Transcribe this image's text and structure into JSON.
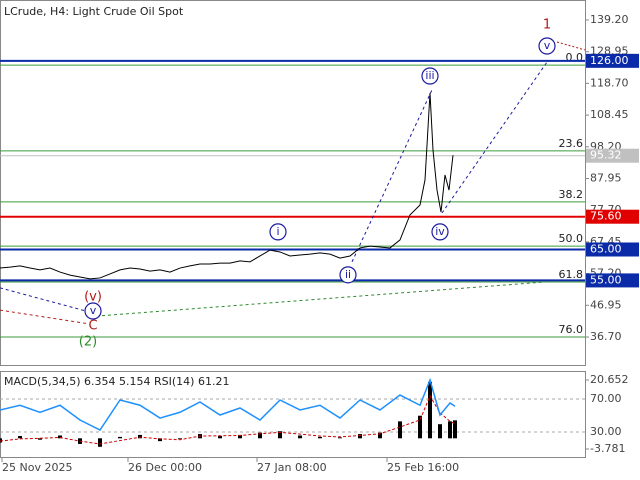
{
  "chart_data": [
    {
      "type": "line",
      "title": "LCrude, H4:  Light Crude Oil Spot",
      "x": [
        0,
        2,
        4,
        6,
        8,
        10,
        12,
        14,
        16,
        18,
        20,
        22,
        24,
        26,
        28,
        30,
        32,
        34,
        36,
        38,
        40,
        42,
        44,
        46,
        48,
        50,
        52,
        54,
        56,
        58,
        60,
        62,
        64,
        66,
        68,
        70,
        72,
        74,
        76,
        78,
        80,
        82,
        84,
        85,
        86,
        86.6,
        87.4,
        88.2,
        89,
        89.8,
        90.6
      ],
      "values": [
        59.0,
        59.3,
        59.7,
        59.0,
        58.4,
        59.0,
        57.7,
        56.7,
        56.1,
        55.5,
        55.8,
        57.1,
        58.4,
        59.0,
        58.7,
        58.0,
        58.4,
        57.7,
        59.0,
        59.7,
        60.3,
        60.3,
        60.6,
        60.6,
        61.3,
        61.0,
        62.9,
        64.8,
        64.2,
        62.9,
        63.2,
        63.5,
        63.9,
        63.5,
        62.2,
        62.9,
        65.5,
        66.1,
        65.8,
        65.5,
        68.1,
        76.2,
        79.4,
        87.5,
        115.6,
        97.2,
        84.2,
        77.1,
        89.1,
        84.2,
        95.5
      ],
      "color": "#000000",
      "xlim": [
        0,
        117
      ],
      "ylim": [
        27.65,
        145.67
      ],
      "xticks": [
        {
          "value": 0.4,
          "label": "25 Nov 2025"
        },
        {
          "value": 25.6,
          "label": "26 Dec 00:00"
        },
        {
          "value": 51.4,
          "label": "27 Jan 08:00"
        },
        {
          "value": 77.4,
          "label": "25 Feb 16:00"
        }
      ],
      "yticks": [
        {
          "value": 139.2,
          "label": "139.20"
        },
        {
          "value": 128.95,
          "label": "128.95"
        },
        {
          "value": 118.7,
          "label": "118.70"
        },
        {
          "value": 108.45,
          "label": "108.45"
        },
        {
          "value": 98.2,
          "label": "98.20"
        },
        {
          "value": 87.95,
          "label": "87.95"
        },
        {
          "value": 77.7,
          "label": "77.70"
        },
        {
          "value": 67.45,
          "label": "67.45"
        },
        {
          "value": 57.2,
          "label": "57.20"
        },
        {
          "value": 46.95,
          "label": "46.95"
        },
        {
          "value": 36.7,
          "label": "36.70"
        }
      ],
      "levels": [
        {
          "value": 126,
          "label": "126.00",
          "color": "#0a2aa8"
        },
        {
          "value": 95.32,
          "label": "95.32",
          "color": "#c0c0c0"
        },
        {
          "value": 75.6,
          "label": "75.60",
          "color": "#e00000"
        },
        {
          "value": 65,
          "label": "65.00",
          "color": "#0a2aa8"
        },
        {
          "value": 55,
          "label": "55.00",
          "color": "#0a2aa8"
        }
      ],
      "fibonacci": {
        "color": "#3c9a3c",
        "levels": [
          {
            "ratio": "0.0",
            "price": 124.6
          },
          {
            "ratio": "23.6",
            "price": 96.9
          },
          {
            "ratio": "38.2",
            "price": 80.4
          },
          {
            "ratio": "50.0",
            "price": 66.1
          },
          {
            "ratio": "61.8",
            "price": 54.5
          },
          {
            "ratio": "76.0",
            "price": 36.7
          }
        ]
      },
      "wave_labels": [
        {
          "text": "1",
          "x": 109.4,
          "y": 137.6,
          "color": "#b01818",
          "circled": false
        },
        {
          "text": "v",
          "x": 109.4,
          "y": 130.8,
          "color": "#1a1aa0",
          "circled": true
        },
        {
          "text": "iii",
          "x": 86,
          "y": 121.1,
          "color": "#1a1aa0",
          "circled": true
        },
        {
          "text": "iv",
          "x": 88,
          "y": 70.7,
          "color": "#1a1aa0",
          "circled": true
        },
        {
          "text": "i",
          "x": 55.6,
          "y": 70.7,
          "color": "#1a1aa0",
          "circled": true
        },
        {
          "text": "ii",
          "x": 69.6,
          "y": 56.8,
          "color": "#1a1aa0",
          "circled": true
        },
        {
          "text": "(v)",
          "x": 18.6,
          "y": 49.6,
          "color": "#b01818",
          "circled": false
        },
        {
          "text": "v",
          "x": 18.6,
          "y": 45.1,
          "color": "#1a1aa0",
          "circled": true
        },
        {
          "text": "C",
          "x": 18.6,
          "y": 40.3,
          "color": "#b01818",
          "circled": false
        },
        {
          "text": "(2)",
          "x": 17.6,
          "y": 35.1,
          "color": "#2e8b2e",
          "circled": false
        }
      ],
      "wave_lines": [
        {
          "x": [
            0,
            17.2
          ],
          "y": [
            52.6,
            45.1
          ],
          "color": "#1a1aa0",
          "dash": "3,3"
        },
        {
          "x": [
            0,
            17.6
          ],
          "y": [
            45.4,
            41.0
          ],
          "color": "#b01818",
          "dash": "3,3"
        },
        {
          "x": [
            20.4,
            109
          ],
          "y": [
            43.6,
            54.5
          ],
          "color": "#2e8b2e",
          "dash": "3,3"
        },
        {
          "x": [
            70.4,
            86.4
          ],
          "y": [
            61.0,
            116.6
          ],
          "color": "#1a1aa0",
          "dash": "3,3"
        },
        {
          "x": [
            88.4,
            109.4
          ],
          "y": [
            76.8,
            125.6
          ],
          "color": "#1a1aa0",
          "dash": "3,3"
        },
        {
          "x": [
            111.4,
            117
          ],
          "y": [
            132.1,
            129.5
          ],
          "color": "#b01818",
          "dash": "2,2"
        }
      ]
    },
    {
      "type": "macd",
      "title": "MACD(5,34,5) 6.354 5.154 RSI(14) 61.21",
      "x": [
        0,
        4,
        8,
        12,
        16,
        20,
        24,
        28,
        32,
        36,
        40,
        44,
        48,
        52,
        56,
        60,
        64,
        68,
        72,
        76,
        80,
        84,
        86,
        88,
        90,
        91
      ],
      "xlim": [
        0,
        117
      ],
      "ylim": [
        -6.62,
        23.48
      ],
      "yticks": [
        20.652,
        -3.781
      ],
      "y2lim": [
        -0.3,
        102.7
      ],
      "y2ticks": [
        {
          "value": 70,
          "label": "70.00"
        },
        {
          "value": 30,
          "label": "30.00"
        }
      ],
      "histogram": {
        "color": "#000000",
        "values": [
          -1.5,
          0.8,
          -0.5,
          1.0,
          -2.0,
          -3.0,
          0.5,
          1.2,
          -1.0,
          -0.3,
          1.5,
          0.8,
          1.2,
          2.0,
          2.5,
          1.0,
          0.5,
          0.3,
          1.5,
          2.0,
          6.0,
          8.0,
          20.0,
          5.0,
          6.0,
          6.354
        ]
      },
      "signal": {
        "color": "#d00000",
        "values": [
          -1.0,
          -0.2,
          0.0,
          0.3,
          -1.0,
          -2.0,
          -0.8,
          0.4,
          -0.2,
          -0.5,
          0.8,
          0.9,
          1.0,
          1.6,
          2.1,
          1.5,
          0.8,
          0.5,
          1.0,
          1.6,
          4.0,
          6.5,
          15.0,
          9.0,
          6.0,
          5.154
        ]
      },
      "rsi": {
        "color": "#1e90ff",
        "axis": "y2",
        "values": [
          56.7,
          62.4,
          53.9,
          62.4,
          44.5,
          32.4,
          68.8,
          62.4,
          46.9,
          53.9,
          66.4,
          50.6,
          59.1,
          44.5,
          68.8,
          56.7,
          62.4,
          46.9,
          68.8,
          56.7,
          74.8,
          62.4,
          93.0,
          50.6,
          65.2,
          61.21
        ]
      }
    }
  ]
}
